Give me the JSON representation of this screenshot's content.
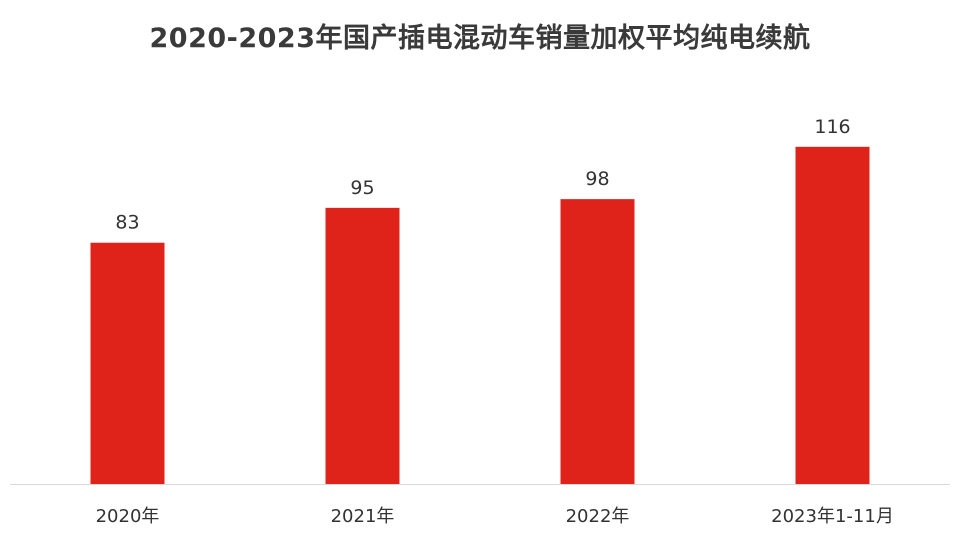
{
  "chart_data": {
    "type": "bar",
    "title": "2020-2023年国产插电混动车销量加权平均纯电续航",
    "categories": [
      "2020年",
      "2021年",
      "2022年",
      "2023年1-11月"
    ],
    "values": [
      83,
      95,
      98,
      116
    ],
    "data_labels": [
      "83",
      "95",
      "98",
      "116"
    ],
    "xlabel": "",
    "ylabel": "",
    "ylim": [
      0,
      118
    ],
    "grid": false,
    "legend": "none",
    "colors": {
      "bar": "#e0231a",
      "title": "#3a3a3a",
      "label": "#333333",
      "axis": "#d9d9d9"
    }
  }
}
